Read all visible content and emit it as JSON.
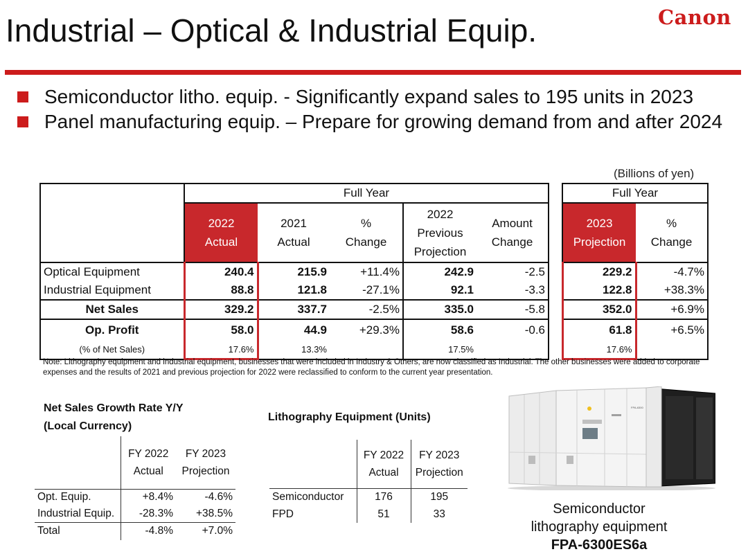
{
  "header": {
    "title": "Industrial – Optical & Industrial Equip.",
    "logo": "Canon"
  },
  "bullets": [
    "Semiconductor litho. equip. - Significantly expand sales to 195 units in 2023",
    "Panel manufacturing equip. – Prepare for growing demand from and after 2024"
  ],
  "main_table": {
    "unit_note": "(Billions of yen)",
    "group_left": "Full Year",
    "group_right": "Full Year",
    "columns": {
      "c2022_line1": "2022",
      "c2022_line2": "Actual",
      "c2021_line1": "2021",
      "c2021_line2": "Actual",
      "pct_line1": "%",
      "pct_line2": "Change",
      "prev_line1": "2022",
      "prev_line2": "Previous",
      "prev_line3": "Projection",
      "amt_line1": "Amount",
      "amt_line2": "Change",
      "proj_line1": "2023",
      "proj_line2": "Projection",
      "pct2_line1": "%",
      "pct2_line2": "Change"
    },
    "rows": [
      {
        "label": "Optical Equipment",
        "a2022": "240.4",
        "a2021": "215.9",
        "pct": "+11.4%",
        "prev": "242.9",
        "amt": "-2.5",
        "proj": "229.2",
        "pct2": "-4.7%"
      },
      {
        "label": "Industrial Equipment",
        "a2022": "88.8",
        "a2021": "121.8",
        "pct": "-27.1%",
        "prev": "92.1",
        "amt": "-3.3",
        "proj": "122.8",
        "pct2": "+38.3%"
      },
      {
        "label": "Net Sales",
        "a2022": "329.2",
        "a2021": "337.7",
        "pct": "-2.5%",
        "prev": "335.0",
        "amt": "-5.8",
        "proj": "352.0",
        "pct2": "+6.9%"
      },
      {
        "label": "Op. Profit",
        "a2022": "58.0",
        "a2021": "44.9",
        "pct": "+29.3%",
        "prev": "58.6",
        "amt": "-0.6",
        "proj": "61.8",
        "pct2": "+6.5%"
      },
      {
        "label": "(% of Net Sales)",
        "a2022": "17.6%",
        "a2021": "13.3%",
        "pct": "",
        "prev": "17.5%",
        "amt": "",
        "proj": "17.6%",
        "pct2": ""
      }
    ]
  },
  "note": "Note: Lithography equipment and industrial equipment, businesses that were included in Industry & Others, are now classified as Industrial. The other businesses were added to corporate expenses and the results of 2021 and previous projection for 2022 were reclassified to conform to the current year presentation.",
  "growth_table": {
    "title_line1": "Net Sales Growth Rate Y/Y",
    "title_line2": "(Local Currency)",
    "col1_line1": "FY 2022",
    "col1_line2": "Actual",
    "col2_line1": "FY 2023",
    "col2_line2": "Projection",
    "rows": [
      {
        "label": "Opt. Equip.",
        "v1": "+8.4%",
        "v2": "-4.6%"
      },
      {
        "label": "Industrial Equip.",
        "v1": "-28.3%",
        "v2": "+38.5%"
      },
      {
        "label": "Total",
        "v1": "-4.8%",
        "v2": "+7.0%"
      }
    ]
  },
  "litho_table": {
    "title": "Lithography Equipment (Units)",
    "col1_line1": "FY 2022",
    "col1_line2": "Actual",
    "col2_line1": "FY 2023",
    "col2_line2": "Projection",
    "rows": [
      {
        "label": "Semiconductor",
        "v1": "176",
        "v2": "195"
      },
      {
        "label": "FPD",
        "v1": "51",
        "v2": "33"
      }
    ]
  },
  "photo": {
    "caption_line1": "Semiconductor",
    "caption_line2": "lithography equipment",
    "model": "FPA-6300ES6a"
  },
  "colors": {
    "accent": "#cc1c1c",
    "highlight": "#c8282c"
  }
}
